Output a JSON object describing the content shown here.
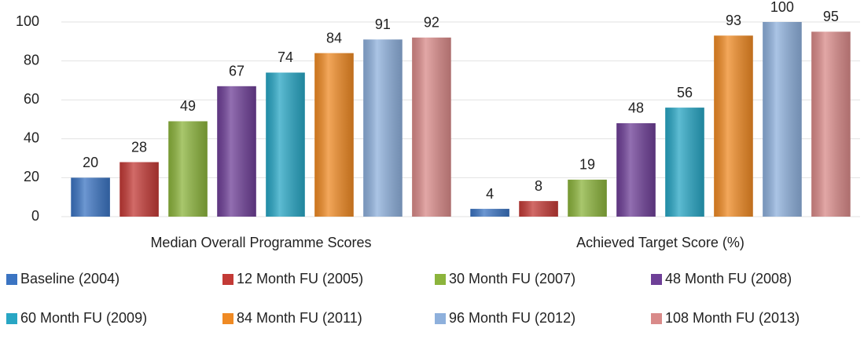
{
  "chart_data": {
    "type": "bar",
    "categories": [
      "Median Overall Programme Scores",
      "Achieved Target Score (%)"
    ],
    "series": [
      {
        "name": "Baseline (2004)",
        "color": "#3b74c2",
        "values": [
          20,
          4
        ]
      },
      {
        "name": "12 Month FU (2005)",
        "color": "#c33a36",
        "values": [
          28,
          8
        ]
      },
      {
        "name": "30 Month FU (2007)",
        "color": "#8cb43c",
        "values": [
          49,
          19
        ]
      },
      {
        "name": "48 Month FU (2008)",
        "color": "#6e3f97",
        "values": [
          67,
          48
        ]
      },
      {
        "name": "60 Month FU (2009)",
        "color": "#28a6c4",
        "values": [
          74,
          56
        ]
      },
      {
        "name": "84 Month FU (2011)",
        "color": "#ef8a24",
        "values": [
          84,
          93
        ]
      },
      {
        "name": "96 Month FU (2012)",
        "color": "#8eb0dc",
        "values": [
          91,
          100
        ]
      },
      {
        "name": "108 Month FU (2013)",
        "color": "#d98a89",
        "values": [
          92,
          95
        ]
      }
    ],
    "ylim": [
      0,
      100
    ],
    "yticks": [
      0,
      20,
      40,
      60,
      80,
      100
    ],
    "grid": true,
    "legend": "bottom"
  }
}
